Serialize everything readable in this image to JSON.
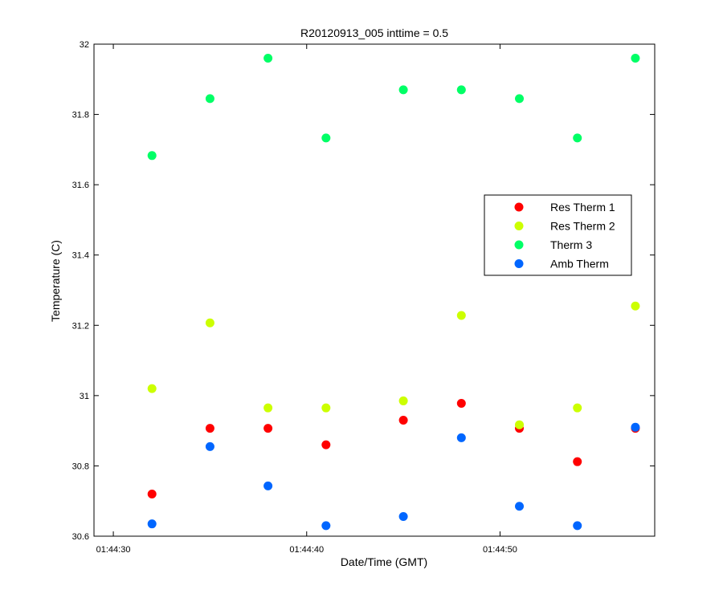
{
  "chart_data": {
    "type": "scatter",
    "title": "R20120913_005 inttime = 0.5",
    "xlabel": "Date/Time (GMT)",
    "ylabel": "Temperature (C)",
    "xlim": [
      "01:44:29",
      "01:44:58"
    ],
    "ylim": [
      30.6,
      32
    ],
    "x_ticks": [
      "01:44:30",
      "01:44:40",
      "01:44:50"
    ],
    "y_ticks": [
      "30.6",
      "30.8",
      "31",
      "31.2",
      "31.4",
      "31.6",
      "31.8",
      "32"
    ],
    "grid": false,
    "legend_position": "right",
    "x": [
      "01:44:32",
      "01:44:35",
      "01:44:38",
      "01:44:41",
      "01:44:45",
      "01:44:48",
      "01:44:51",
      "01:44:54",
      "01:44:57"
    ],
    "series": [
      {
        "name": "Res Therm 1",
        "color": "#ff0000",
        "values": [
          30.72,
          30.907,
          30.907,
          30.86,
          30.93,
          30.978,
          30.907,
          30.812,
          30.907
        ]
      },
      {
        "name": "Res Therm 2",
        "color": "#ccff00",
        "values": [
          31.02,
          31.207,
          30.965,
          30.965,
          30.985,
          31.228,
          30.917,
          30.965,
          31.255
        ]
      },
      {
        "name": "Therm 3",
        "color": "#00ff66",
        "values": [
          31.683,
          31.845,
          31.96,
          31.733,
          31.87,
          31.87,
          31.845,
          31.733,
          31.96
        ]
      },
      {
        "name": "Amb Therm",
        "color": "#0066ff",
        "values": [
          30.635,
          30.855,
          30.743,
          30.63,
          30.656,
          30.88,
          30.685,
          30.63,
          30.91
        ]
      }
    ]
  }
}
